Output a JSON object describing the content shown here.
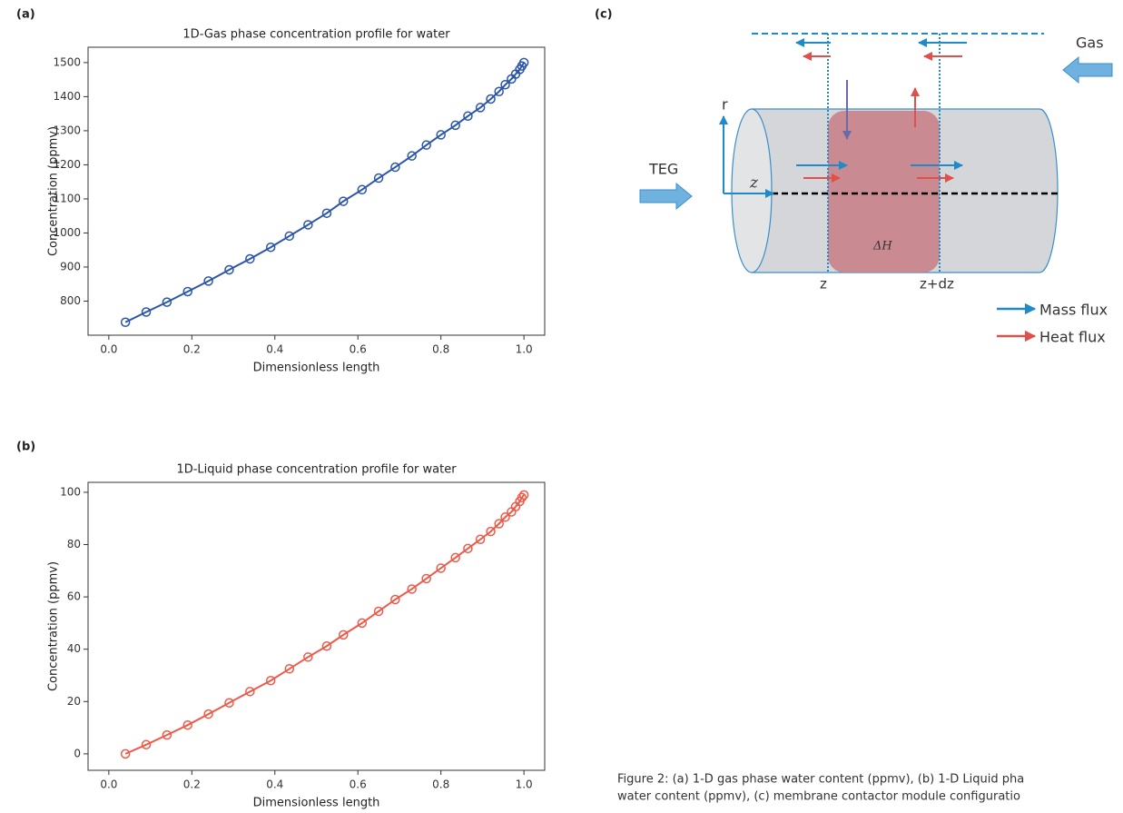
{
  "panels": [
    "(a)",
    "(b)",
    "(c)"
  ],
  "chart_data": [
    {
      "type": "line",
      "title": "1D-Gas phase concentration profile for water",
      "x_label": "Dimensionless length",
      "y_label": "Concentration (ppmv)",
      "x": [
        0.04,
        0.09,
        0.14,
        0.19,
        0.24,
        0.29,
        0.34,
        0.39,
        0.435,
        0.48,
        0.525,
        0.565,
        0.61,
        0.65,
        0.69,
        0.73,
        0.765,
        0.8,
        0.835,
        0.865,
        0.895,
        0.92,
        0.94,
        0.955,
        0.97,
        0.98,
        0.99,
        0.995,
        1.0
      ],
      "series": [
        {
          "name": "Gas",
          "color": "#2b55a8",
          "values": [
            738,
            768,
            797,
            828,
            859,
            892,
            924,
            958,
            991,
            1024,
            1058,
            1093,
            1127,
            1161,
            1193,
            1226,
            1258,
            1288,
            1316,
            1343,
            1368,
            1393,
            1415,
            1435,
            1452,
            1466,
            1480,
            1490,
            1500
          ]
        }
      ],
      "xlim": [
        -0.05,
        1.05
      ],
      "ylim": [
        700,
        1545
      ],
      "xticks": [
        {
          "value": 0,
          "label": "0.0"
        },
        {
          "value": 0.2,
          "label": "0.2"
        },
        {
          "value": 0.4,
          "label": "0.4"
        },
        {
          "value": 0.6,
          "label": "0.6"
        },
        {
          "value": 0.8,
          "label": "0.8"
        },
        {
          "value": 1,
          "label": "1.0"
        }
      ],
      "yticks": [
        800,
        900,
        1000,
        1100,
        1200,
        1300,
        1400,
        1500
      ]
    },
    {
      "type": "line",
      "title": "1D-Liquid phase concentration profile for water",
      "x_label": "Dimensionless length",
      "y_label": "Concentration (ppmv)",
      "x": [
        0.04,
        0.09,
        0.14,
        0.19,
        0.24,
        0.29,
        0.34,
        0.39,
        0.435,
        0.48,
        0.525,
        0.565,
        0.61,
        0.65,
        0.69,
        0.73,
        0.765,
        0.8,
        0.835,
        0.865,
        0.895,
        0.92,
        0.94,
        0.955,
        0.97,
        0.98,
        0.99,
        0.995,
        1.0
      ],
      "series": [
        {
          "name": "Liquid",
          "color": "#ee5a4a",
          "values": [
            0,
            3.5,
            7.2,
            11,
            15.2,
            19.5,
            23.8,
            28,
            32.5,
            37,
            41.2,
            45.5,
            50,
            54.5,
            59,
            63,
            67,
            71,
            75,
            78.5,
            82,
            85,
            88,
            90.5,
            92.5,
            94.5,
            96.5,
            98,
            99
          ]
        }
      ],
      "xlim": [
        -0.05,
        1.05
      ],
      "ylim": [
        -6.3,
        103.8
      ],
      "xticks": [
        {
          "value": 0,
          "label": "0.0"
        },
        {
          "value": 0.2,
          "label": "0.2"
        },
        {
          "value": 0.4,
          "label": "0.4"
        },
        {
          "value": 0.6,
          "label": "0.6"
        },
        {
          "value": 0.8,
          "label": "0.8"
        },
        {
          "value": 1,
          "label": "1.0"
        }
      ],
      "yticks": [
        0,
        20,
        40,
        60,
        80,
        100
      ]
    }
  ],
  "diagram": {
    "gas": "Gas",
    "r": "r",
    "teg": "TEG",
    "z_axis": "z",
    "delta_h": "ΔH",
    "z": "z",
    "z_dz": "z+dz",
    "mass_flux": "Mass flux",
    "heat_flux": "Heat flux"
  },
  "caption": [
    "Figure 2: (a) 1-D gas phase water content (ppmv), (b) 1-D Liquid pha",
    "water content (ppmv), (c) membrane contactor module configuratio"
  ]
}
